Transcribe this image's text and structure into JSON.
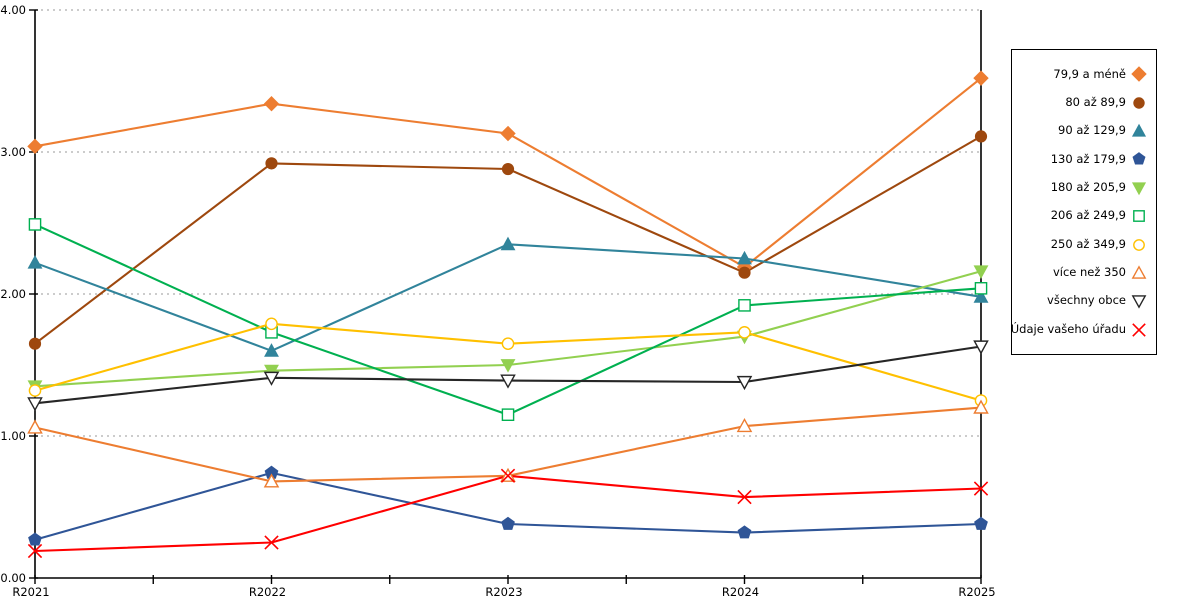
{
  "chart_data": {
    "type": "line",
    "title": "",
    "xlabel": "",
    "ylabel": "",
    "categories": [
      "R2021",
      "R2022",
      "R2023",
      "R2024",
      "R2025"
    ],
    "ylim": [
      0,
      4
    ],
    "y_ticks": [
      "0.00",
      "1.00",
      "2.00",
      "3.00",
      "4.00"
    ],
    "grid": "horizontal-dotted",
    "legend_position": "right-outside-box",
    "series": [
      {
        "name": "79,9 a méně",
        "marker": "diamond",
        "style": "filled",
        "color": "#ED7D31",
        "values": [
          3.04,
          3.34,
          3.13,
          2.19,
          3.52
        ]
      },
      {
        "name": "80 až 89,9",
        "marker": "circle",
        "style": "filled",
        "color": "#9E480E",
        "values": [
          1.65,
          2.92,
          2.88,
          2.15,
          3.11
        ]
      },
      {
        "name": "90 až 129,9",
        "marker": "triangle-up",
        "style": "filled",
        "color": "#31849B",
        "values": [
          2.22,
          1.6,
          2.35,
          2.25,
          1.98
        ]
      },
      {
        "name": "130 až 179,9",
        "marker": "pentagon",
        "style": "filled",
        "color": "#2F5597",
        "values": [
          0.27,
          0.74,
          0.38,
          0.32,
          0.38
        ]
      },
      {
        "name": "180 až 205,9",
        "marker": "triangle-down",
        "style": "filled",
        "color": "#92D050",
        "values": [
          1.35,
          1.46,
          1.5,
          1.7,
          2.16
        ]
      },
      {
        "name": "206 až 249,9",
        "marker": "square",
        "style": "open",
        "color": "#00B050",
        "values": [
          2.49,
          1.73,
          1.15,
          1.92,
          2.04
        ]
      },
      {
        "name": "250 až 349,9",
        "marker": "circle",
        "style": "open",
        "color": "#FFC000",
        "values": [
          1.32,
          1.79,
          1.65,
          1.73,
          1.25
        ]
      },
      {
        "name": "více než 350",
        "marker": "triangle-up",
        "style": "open",
        "color": "#ED7D31",
        "values": [
          1.06,
          0.68,
          0.72,
          1.07,
          1.2
        ]
      },
      {
        "name": "všechny obce",
        "marker": "triangle-down",
        "style": "open",
        "color": "#262626",
        "values": [
          1.23,
          1.41,
          1.39,
          1.38,
          1.63
        ]
      },
      {
        "name": "Údaje vašeho úřadu",
        "marker": "x",
        "style": "open",
        "color": "#FF0000",
        "values": [
          0.19,
          0.25,
          0.72,
          0.57,
          0.63
        ]
      }
    ],
    "colors": {
      "axis": "#000000",
      "gridline": "#ADADAD",
      "background": "#FFFFFF"
    }
  }
}
